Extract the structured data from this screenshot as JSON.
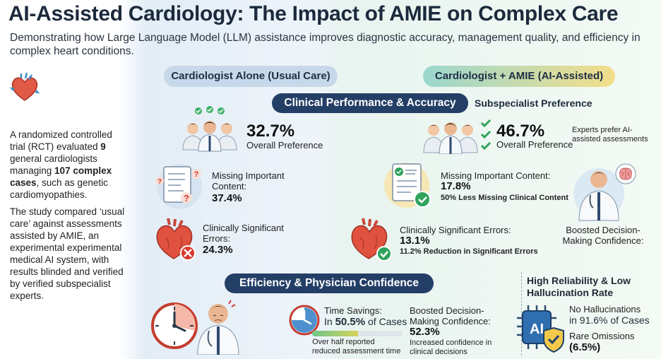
{
  "title": "AI-Assisted Cardiology: The Impact of AMIE on Complex Care",
  "subtitle": "Demonstrating how Large Language Model (LLM) assistance improves diagnostic accuracy, management quality, and efficiency in complex heart conditions.",
  "intro": {
    "p1_a": "A randomized controlled trial (RCT) evaluated ",
    "p1_b": "9",
    "p1_c": " general cardiologists managing ",
    "p1_d": "107 complex cases",
    "p1_e": ", such as genetic cardiomyopathies.",
    "p2": "The study compared ‘usual care’ against assessments assisted by AMIE, an experimental experimental medical AI system, with results blinded and verified by verified subspecialist experts."
  },
  "columns": {
    "left_label": "Cardiologist Alone (Usual Care)",
    "right_label": "Cardiologist + AMIE (AI-Assisted)"
  },
  "clinical_banner": "Clinical Performance & Accuracy",
  "subspecialist_preference": "Subspecialist Preference",
  "left": {
    "preference_value": "32.7%",
    "preference_label": "Overall Preference",
    "missing_label": "Missing Important Content:",
    "missing_value": "37.4%",
    "errors_label": "Clinically Significant Errors:",
    "errors_value": "24.3%"
  },
  "right": {
    "preference_value": "46.7%",
    "preference_label": "Overall Preference",
    "preference_note": "Experts prefer AI-assisted assessments",
    "missing_label": "Missing Important Content:",
    "missing_value": "17.8%",
    "missing_note": "50% Less Missing Clinical Content",
    "errors_label": "Clinically Significant Errors:",
    "errors_value": "13.1%",
    "errors_note": "11.2% Reduction in Significant Errors",
    "confidence_label": "Boosted Decision-Making Confidence:"
  },
  "efficiency": {
    "banner": "Efficiency & Physician Confidence",
    "time_label": "Time Savings:",
    "time_value_prefix": "In ",
    "time_value_pct": "50.5%",
    "time_value_suffix": " of Cases",
    "time_progress": 0.505,
    "time_note": "Over half reported reduced assessment time",
    "confidence_label": "Boosted Decision-Making Confidence:",
    "confidence_value": "52.3%",
    "confidence_note": "Increased confidence in clinical decisions"
  },
  "reliability": {
    "title": "High Reliability & Low Hallucination Rate",
    "chip_text": "AI",
    "no_hallucinations_label": "No Hallucinations",
    "no_hallucinations_value": "in 91.6% of Cases",
    "omissions_label": "Rare Omissions",
    "omissions_value": "(6.5%)"
  },
  "colors": {
    "navy": "#243f66",
    "green": "#2fa35c",
    "red": "#d9382f",
    "heart": "#e0523f"
  }
}
